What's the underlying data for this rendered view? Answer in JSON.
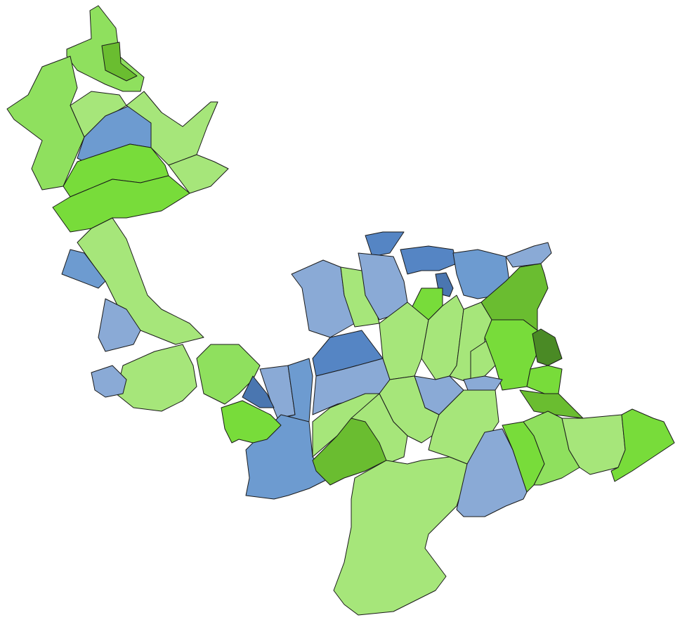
{
  "map": {
    "type": "choropleth",
    "legend": "none",
    "palette": {
      "light_green": "#a6e67a",
      "medium_green": "#8fe05e",
      "bright_green": "#78dc3a",
      "olive_green": "#6abd30",
      "dark_green": "#4a8a25",
      "light_blue": "#8aaad6",
      "medium_blue": "#6d9bd0",
      "strong_blue": "#5585c4",
      "dark_blue": "#4a76b0"
    }
  }
}
